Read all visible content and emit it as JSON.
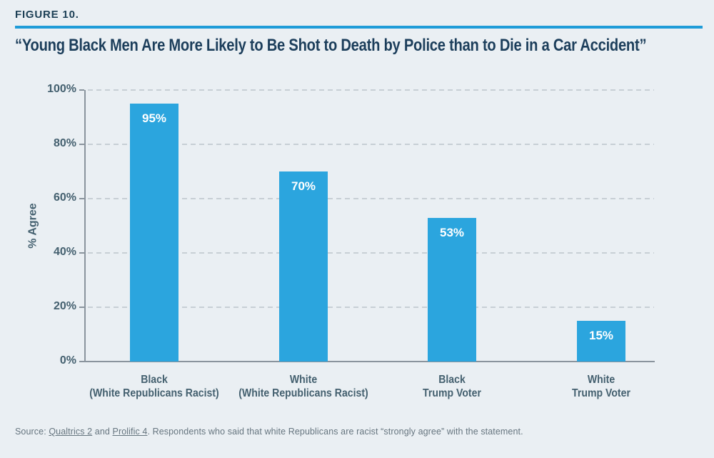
{
  "figure": {
    "label": "FIGURE 10.",
    "title": "“Young Black Men Are More Likely to Be Shot to Death by Police than to Die in a Car Accident”"
  },
  "chart_data": {
    "type": "bar",
    "title": "“Young Black Men Are More Likely to Be Shot to Death by Police than to Die in a Car Accident”",
    "categories": [
      [
        "Black",
        "(White Republicans Racist)"
      ],
      [
        "White",
        "(White Republicans Racist)"
      ],
      [
        "Black",
        "Trump Voter"
      ],
      [
        "White",
        "Trump Voter"
      ]
    ],
    "values": [
      95,
      70,
      53,
      15
    ],
    "value_labels": [
      "95%",
      "70%",
      "53%",
      "15%"
    ],
    "xlabel": "",
    "ylabel": "% Agree",
    "ylim": [
      0,
      100
    ],
    "yticks": [
      {
        "value": 0,
        "label": "0%"
      },
      {
        "value": 20,
        "label": "20%"
      },
      {
        "value": 40,
        "label": "40%"
      },
      {
        "value": 60,
        "label": "60%"
      },
      {
        "value": 80,
        "label": "80%"
      },
      {
        "value": 100,
        "label": "100%"
      }
    ],
    "grid": "horizontal-dashed",
    "legend": "none",
    "bar_color": "#2BA5DE"
  },
  "colors": {
    "background": "#EAEFF3",
    "accent_rule": "#1F9CD8",
    "bar": "#2BA5DE",
    "title_text": "#1C3E5B",
    "axis_text": "#44606F",
    "axis_line": "#8A949D",
    "gridline": "#C7CFD5",
    "source_text": "#66757F"
  },
  "source": {
    "prefix": "Source: ",
    "link1": "Qualtrics 2",
    "mid": " and ",
    "link2": "Prolific 4",
    "suffix": ". Respondents who said that white Republicans are racist “strongly agree” with the statement."
  }
}
